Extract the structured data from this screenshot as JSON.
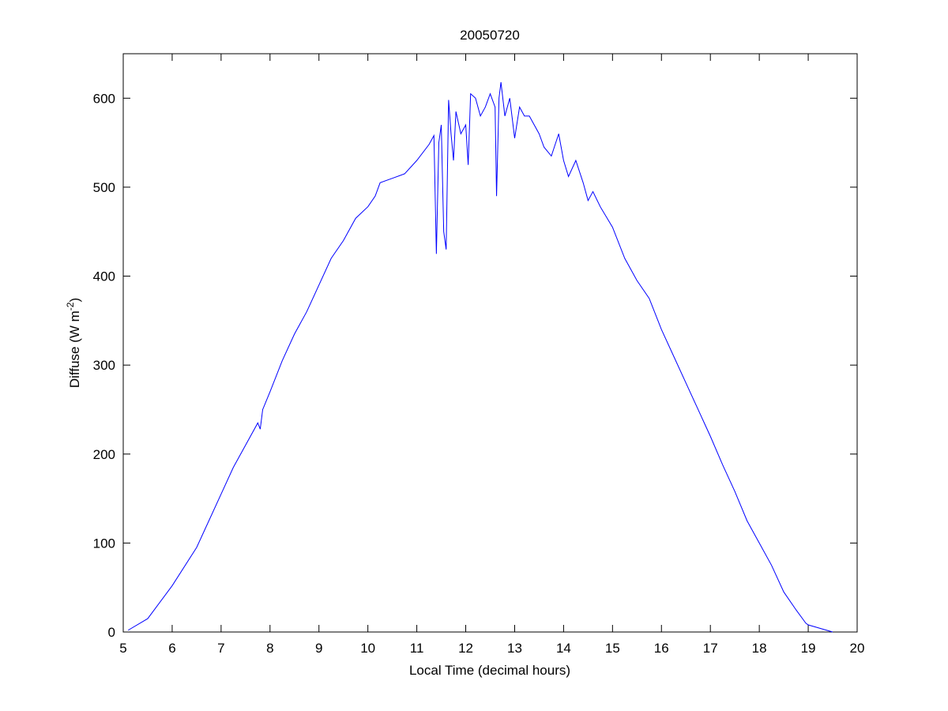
{
  "chart_data": {
    "type": "line",
    "title": "20050720",
    "xlabel": "Local Time (decimal hours)",
    "ylabel": {
      "text": "Diffuse (W m",
      "superscript": "-2",
      "suffix": ")"
    },
    "xlim": [
      5,
      20
    ],
    "xticks": [
      5,
      6,
      7,
      8,
      9,
      10,
      11,
      12,
      13,
      14,
      15,
      16,
      17,
      18,
      19,
      20
    ],
    "ylim": [
      0,
      650
    ],
    "yticks": [
      0,
      100,
      200,
      300,
      400,
      500,
      600
    ],
    "grid": false,
    "series": [
      {
        "color": "#0000ff",
        "x": [
          5.1,
          5.5,
          6.0,
          6.5,
          7.0,
          7.25,
          7.5,
          7.75,
          7.8,
          7.85,
          8.0,
          8.25,
          8.5,
          8.75,
          9.0,
          9.25,
          9.5,
          9.75,
          10.0,
          10.15,
          10.25,
          10.5,
          10.75,
          11.0,
          11.25,
          11.35,
          11.4,
          11.45,
          11.5,
          11.55,
          11.6,
          11.65,
          11.7,
          11.75,
          11.8,
          11.9,
          12.0,
          12.05,
          12.1,
          12.2,
          12.3,
          12.4,
          12.5,
          12.6,
          12.63,
          12.68,
          12.72,
          12.8,
          12.9,
          13.0,
          13.1,
          13.2,
          13.3,
          13.5,
          13.6,
          13.75,
          13.9,
          14.0,
          14.1,
          14.25,
          14.4,
          14.5,
          14.6,
          14.75,
          15.0,
          15.25,
          15.5,
          15.75,
          16.0,
          16.25,
          16.5,
          16.75,
          17.0,
          17.25,
          17.5,
          17.75,
          18.0,
          18.25,
          18.5,
          18.75,
          18.95,
          19.0,
          19.5
        ],
        "values": [
          2,
          15,
          52,
          95,
          155,
          185,
          210,
          235,
          228,
          250,
          270,
          305,
          335,
          360,
          390,
          420,
          440,
          465,
          478,
          490,
          505,
          510,
          515,
          530,
          548,
          558,
          425,
          550,
          570,
          450,
          430,
          598,
          560,
          530,
          585,
          560,
          570,
          525,
          605,
          600,
          580,
          590,
          605,
          590,
          490,
          600,
          618,
          580,
          600,
          555,
          590,
          580,
          580,
          560,
          545,
          535,
          560,
          530,
          512,
          530,
          505,
          485,
          495,
          478,
          455,
          420,
          395,
          375,
          340,
          310,
          280,
          250,
          220,
          188,
          158,
          125,
          100,
          75,
          45,
          25,
          10,
          8,
          0
        ]
      }
    ]
  }
}
